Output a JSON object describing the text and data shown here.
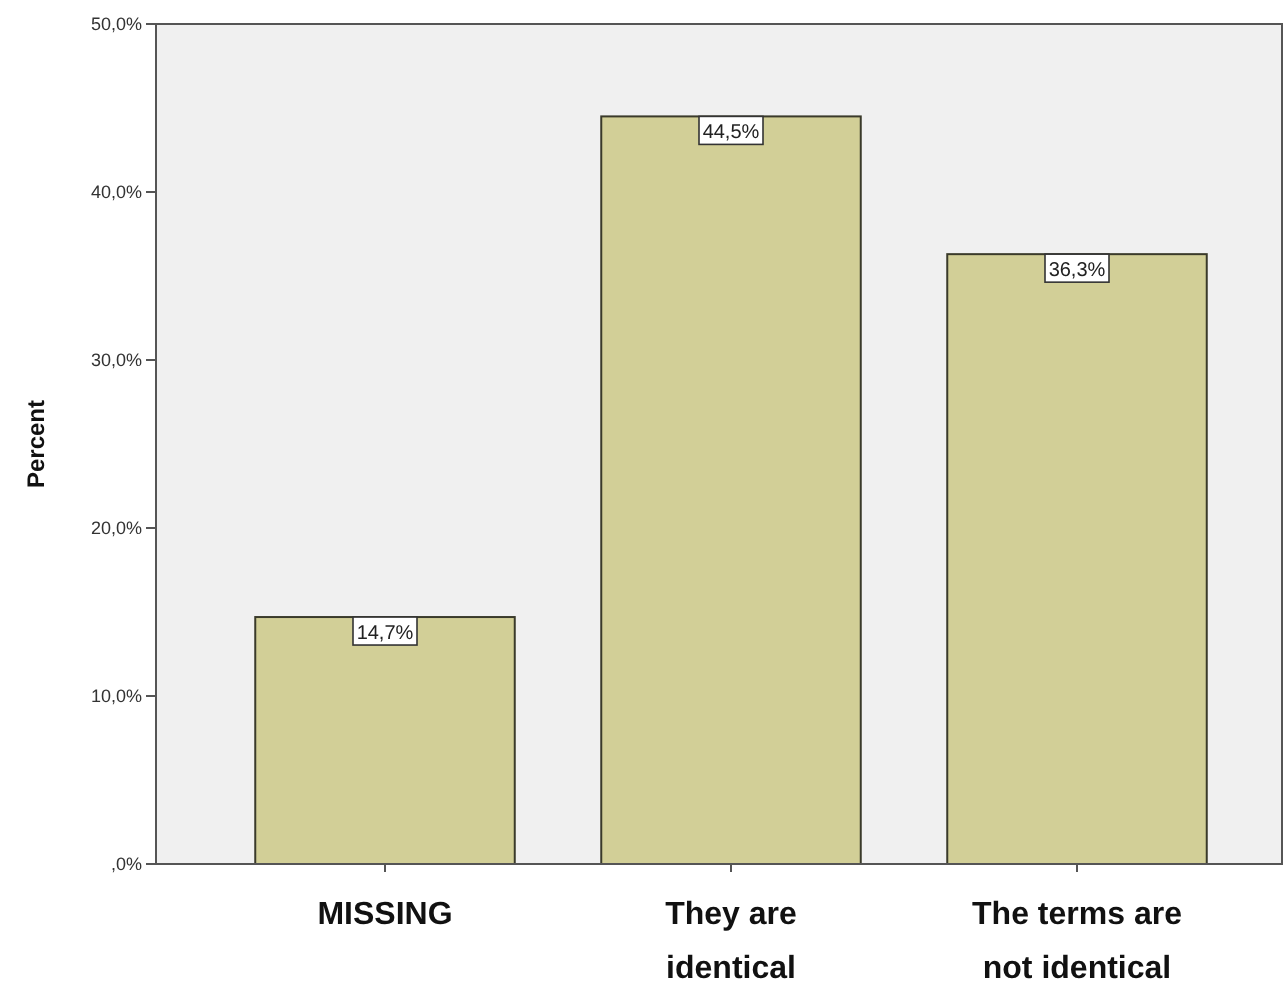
{
  "chart_data": {
    "type": "bar",
    "ylabel": "Percent",
    "categories": [
      "MISSING",
      "They are identical",
      "The terms are not identical"
    ],
    "values": [
      14.7,
      44.5,
      36.3
    ],
    "value_labels": [
      "14,7%",
      "44,5%",
      "36,3%"
    ],
    "color": "#d2cf97",
    "ylim": [
      0,
      50
    ],
    "yticks": [
      {
        "value": 0,
        "label": ",0%"
      },
      {
        "value": 10,
        "label": "10,0%"
      },
      {
        "value": 20,
        "label": "20,0%"
      },
      {
        "value": 30,
        "label": "30,0%"
      },
      {
        "value": 40,
        "label": "40,0%"
      },
      {
        "value": 50,
        "label": "50,0%"
      }
    ],
    "data_labels": false
  }
}
